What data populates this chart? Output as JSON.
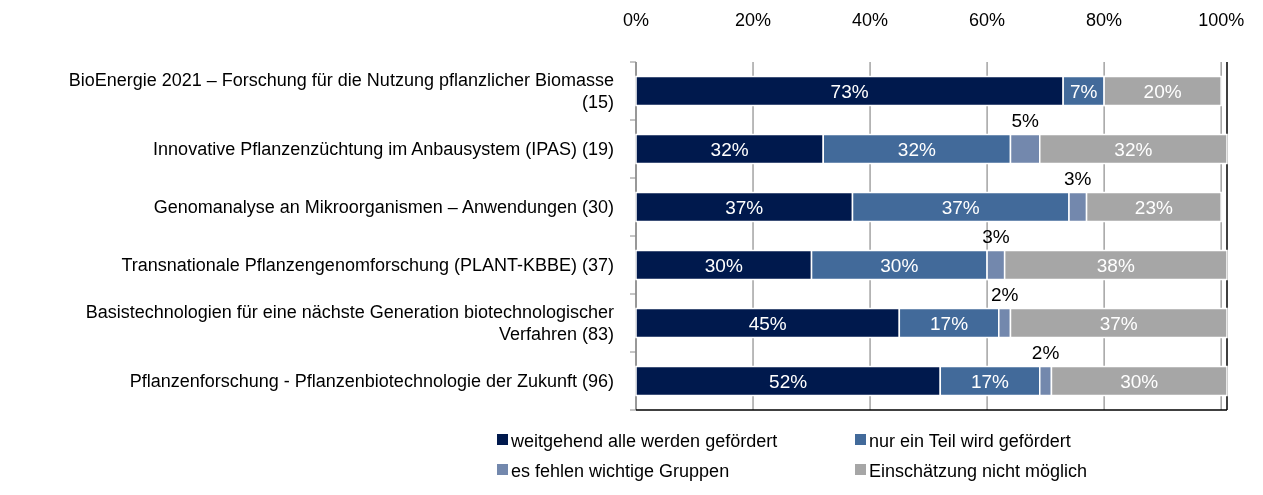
{
  "chart_data": {
    "type": "bar",
    "orientation": "horizontal",
    "stacked": true,
    "categories": [
      "BioEnergie 2021 – Forschung für die Nutzung pflanzlicher Biomasse (15)",
      "Innovative Pflanzenzüchtung im Anbausystem (IPAS) (19)",
      "Genomanalyse an Mikroorganismen – Anwendungen (30)",
      "Transnationale Pflanzengenomforschung (PLANT-KBBE) (37)",
      "Basistechnologien für eine nächste Generation biotechnologischer Verfahren (83)",
      "Pflanzenforschung - Pflanzenbiotechnologie der Zukunft (96)"
    ],
    "series": [
      {
        "name": "weitgehend alle werden gefördert",
        "color": "#00194d",
        "values": [
          73,
          32,
          37,
          30,
          45,
          52
        ],
        "value_labels": [
          "73%",
          "32%",
          "37%",
          "30%",
          "45%",
          "52%"
        ]
      },
      {
        "name": "nur ein Teil wird gefördert",
        "color": "#426a9a",
        "values": [
          7,
          32,
          37,
          30,
          17,
          17
        ],
        "value_labels": [
          "7%",
          "32%",
          "37%",
          "30%",
          "17%",
          "17%"
        ]
      },
      {
        "name": "es fehlen wichtige Gruppen",
        "color": "#7388ad",
        "values": [
          null,
          5,
          3,
          3,
          2,
          2
        ],
        "value_labels": [
          null,
          "5%",
          "3%",
          "3%",
          "2%",
          "2%"
        ]
      },
      {
        "name": "Einschätzung nicht möglich",
        "color": "#a6a6a6",
        "values": [
          20,
          32,
          23,
          38,
          37,
          30
        ],
        "value_labels": [
          "20%",
          "32%",
          "23%",
          "38%",
          "37%",
          "30%"
        ]
      }
    ],
    "xlim": [
      0,
      101
    ],
    "xticks": [
      {
        "value": 0,
        "label": "0%"
      },
      {
        "value": 20,
        "label": "20%"
      },
      {
        "value": 40,
        "label": "40%"
      },
      {
        "value": 60,
        "label": "60%"
      },
      {
        "value": 80,
        "label": "80%"
      },
      {
        "value": 100,
        "label": "100%"
      }
    ],
    "grid": "x",
    "legend": "bottom"
  }
}
